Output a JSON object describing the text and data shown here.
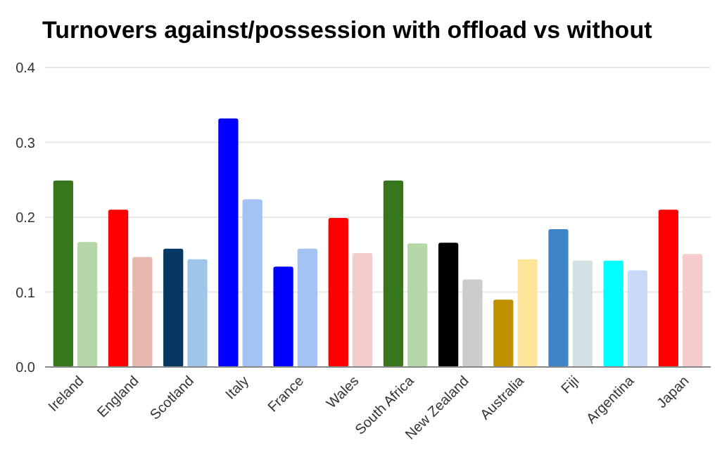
{
  "chart_data": {
    "type": "bar",
    "title": "Turnovers against/possession with offload vs without",
    "categories": [
      "Ireland",
      "England",
      "Scotland",
      "Italy",
      "France",
      "Wales",
      "South Africa",
      "New Zealand",
      "Australia",
      "Fiji",
      "Argentina",
      "Japan"
    ],
    "series": [
      {
        "values": [
          0.249,
          0.21,
          0.158,
          0.332,
          0.134,
          0.199,
          0.249,
          0.166,
          0.09,
          0.184,
          0.142,
          0.21
        ],
        "colors": [
          "#38761d",
          "#ff0000",
          "#073763",
          "#0000ff",
          "#0000ff",
          "#ff0000",
          "#38761d",
          "#000000",
          "#bf9000",
          "#3d85c6",
          "#00ffff",
          "#ff0000"
        ]
      },
      {
        "values": [
          0.167,
          0.147,
          0.144,
          0.224,
          0.158,
          0.152,
          0.165,
          0.117,
          0.144,
          0.142,
          0.129,
          0.151
        ],
        "colors": [
          "#b6d7a8",
          "#e6b8af",
          "#9fc5e8",
          "#a4c2f4",
          "#a4c2f4",
          "#f4cccc",
          "#b6d7a8",
          "#cccccc",
          "#ffe599",
          "#d0e0e3",
          "#c9daf8",
          "#f4cccc"
        ]
      }
    ],
    "ylim": [
      0,
      0.4
    ],
    "yticks": [
      {
        "value": 0,
        "label": "0.0"
      },
      {
        "value": 0.1,
        "label": "0.1"
      },
      {
        "value": 0.2,
        "label": "0.2"
      },
      {
        "value": 0.3,
        "label": "0.3"
      },
      {
        "value": 0.4,
        "label": "0.4"
      }
    ],
    "grid": "y"
  }
}
